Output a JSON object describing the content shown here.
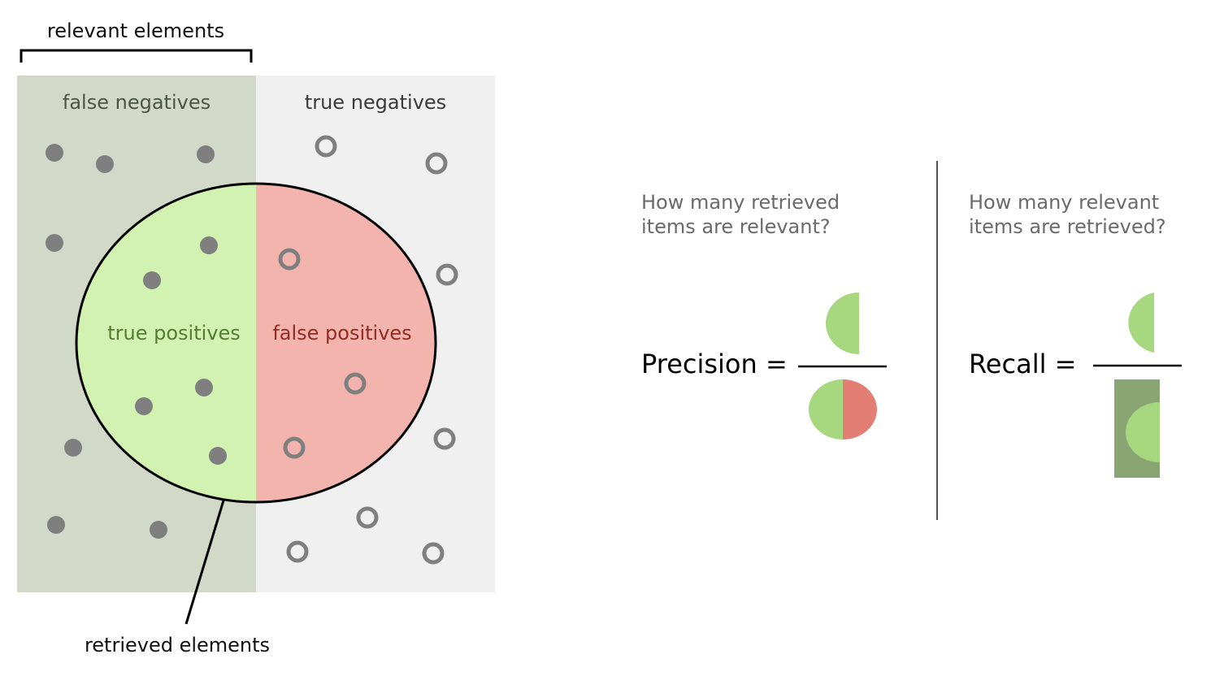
{
  "labels": {
    "relevant_elements": "relevant elements",
    "false_negatives": "false negatives",
    "true_negatives": "true negatives",
    "true_positives": "true positives",
    "false_positives": "false positives",
    "retrieved_elements": "retrieved elements"
  },
  "precision": {
    "question_line1": "How many retrieved",
    "question_line2": "items are relevant?",
    "label": "Precision ="
  },
  "recall": {
    "question_line1": "How many relevant",
    "question_line2": "items are retrieved?",
    "label": "Recall ="
  },
  "colors": {
    "relevant_region": "#d3d9c9",
    "irrelevant_region": "#f0f0f0",
    "true_positive_fill": "#d1f2b1",
    "false_positive_fill": "#f4b4ae",
    "precision_green": "#a7d77f",
    "precision_red": "#e27e74",
    "recall_dark": "#8aa574",
    "dot": "#7f7f7f",
    "question_text": "#6a6a6a",
    "false_negatives_text": "#4b5544",
    "true_positives_text": "#557c33",
    "false_positives_text": "#8f2d25"
  },
  "icons": {
    "relevant_item": "filled-dot-icon",
    "irrelevant_item": "hollow-ring-icon"
  }
}
